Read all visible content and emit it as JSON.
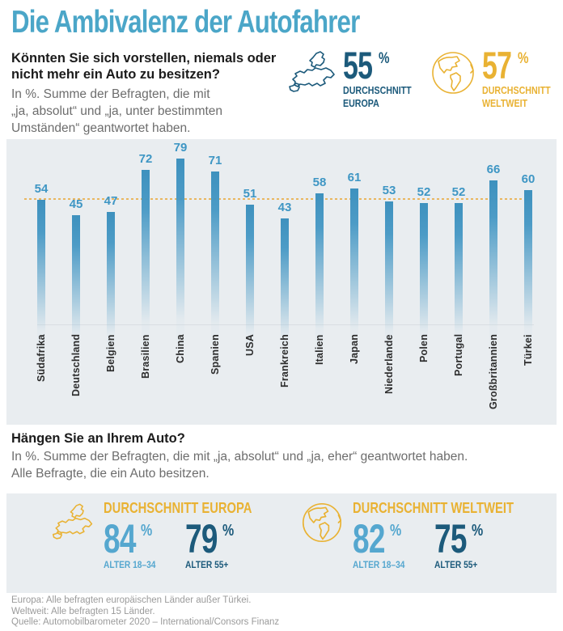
{
  "colors": {
    "title_teal": "#4BA6C8",
    "bar_blue": "#4598C5",
    "dark_blue": "#1C5A7B",
    "yellow": "#E9B233",
    "light_blue": "#55A7CF",
    "panel_bg": "#E9EDF0",
    "reference_dashed": "#E9A93C"
  },
  "header": {
    "title": "Die Ambivalenz der Autofahrer"
  },
  "section1": {
    "question_lines": [
      "Könnten Sie sich vorstellen, niemals oder",
      "nicht mehr ein Auto zu besitzen?"
    ],
    "note_lines": [
      "In %. Summe der Befragten, die mit",
      "„ja, absolut“ und „ja, unter bestimmten",
      "Umständen“ geantwortet haben."
    ],
    "stats": [
      {
        "icon": "europe-map-icon",
        "value": "55",
        "unit": "%",
        "label_line1": "DURCHSCHNITT",
        "label_line2": "EUROPA"
      },
      {
        "icon": "globe-icon",
        "value": "57",
        "unit": "%",
        "label_line1": "DURCHSCHNITT",
        "label_line2": "WELTWEIT"
      }
    ]
  },
  "chart_data": {
    "type": "bar",
    "title": "Könnten Sie sich vorstellen, niemals oder nicht mehr ein Auto zu besitzen?",
    "unit": "%",
    "categories": [
      "Südafrika",
      "Deutschland",
      "Belgien",
      "Brasilien",
      "China",
      "Spanien",
      "USA",
      "Frankreich",
      "Italien",
      "Japan",
      "Niederlande",
      "Polen",
      "Portugal",
      "Großbritannien",
      "Türkei"
    ],
    "values": [
      54,
      45,
      47,
      72,
      79,
      71,
      51,
      43,
      58,
      61,
      53,
      52,
      52,
      66,
      60
    ],
    "reference_line": {
      "value": 55,
      "meaning": "Durchschnitt Europa"
    },
    "ylim": [
      0,
      85
    ],
    "grid": false,
    "legend": "none",
    "bar_color": "#4598C5"
  },
  "section2": {
    "question": "Hängen Sie an Ihrem Auto?",
    "note_lines": [
      "In %. Summe der Befragten, die mit „ja, absolut“ und „ja, eher“ geantwortet haben.",
      "Alle Befragte, die ein Auto besitzen."
    ],
    "groups": [
      {
        "icon": "europe-map-icon",
        "heading": "DURCHSCHNITT EUROPA",
        "stats": [
          {
            "value": "84",
            "unit": "%",
            "label": "ALTER 18–34",
            "tone": "light"
          },
          {
            "value": "79",
            "unit": "%",
            "label": "ALTER 55+",
            "tone": "dark"
          }
        ]
      },
      {
        "icon": "globe-icon",
        "heading": "DURCHSCHNITT WELTWEIT",
        "stats": [
          {
            "value": "82",
            "unit": "%",
            "label": "ALTER 18–34",
            "tone": "light"
          },
          {
            "value": "75",
            "unit": "%",
            "label": "ALTER 55+",
            "tone": "dark"
          }
        ]
      }
    ]
  },
  "footer_lines": [
    "Europa: Alle befragten europäischen Länder außer Türkei.",
    "Weltweit: Alle befragten 15 Länder.",
    "Quelle: Automobilbarometer 2020 – International/Consors Finanz"
  ]
}
